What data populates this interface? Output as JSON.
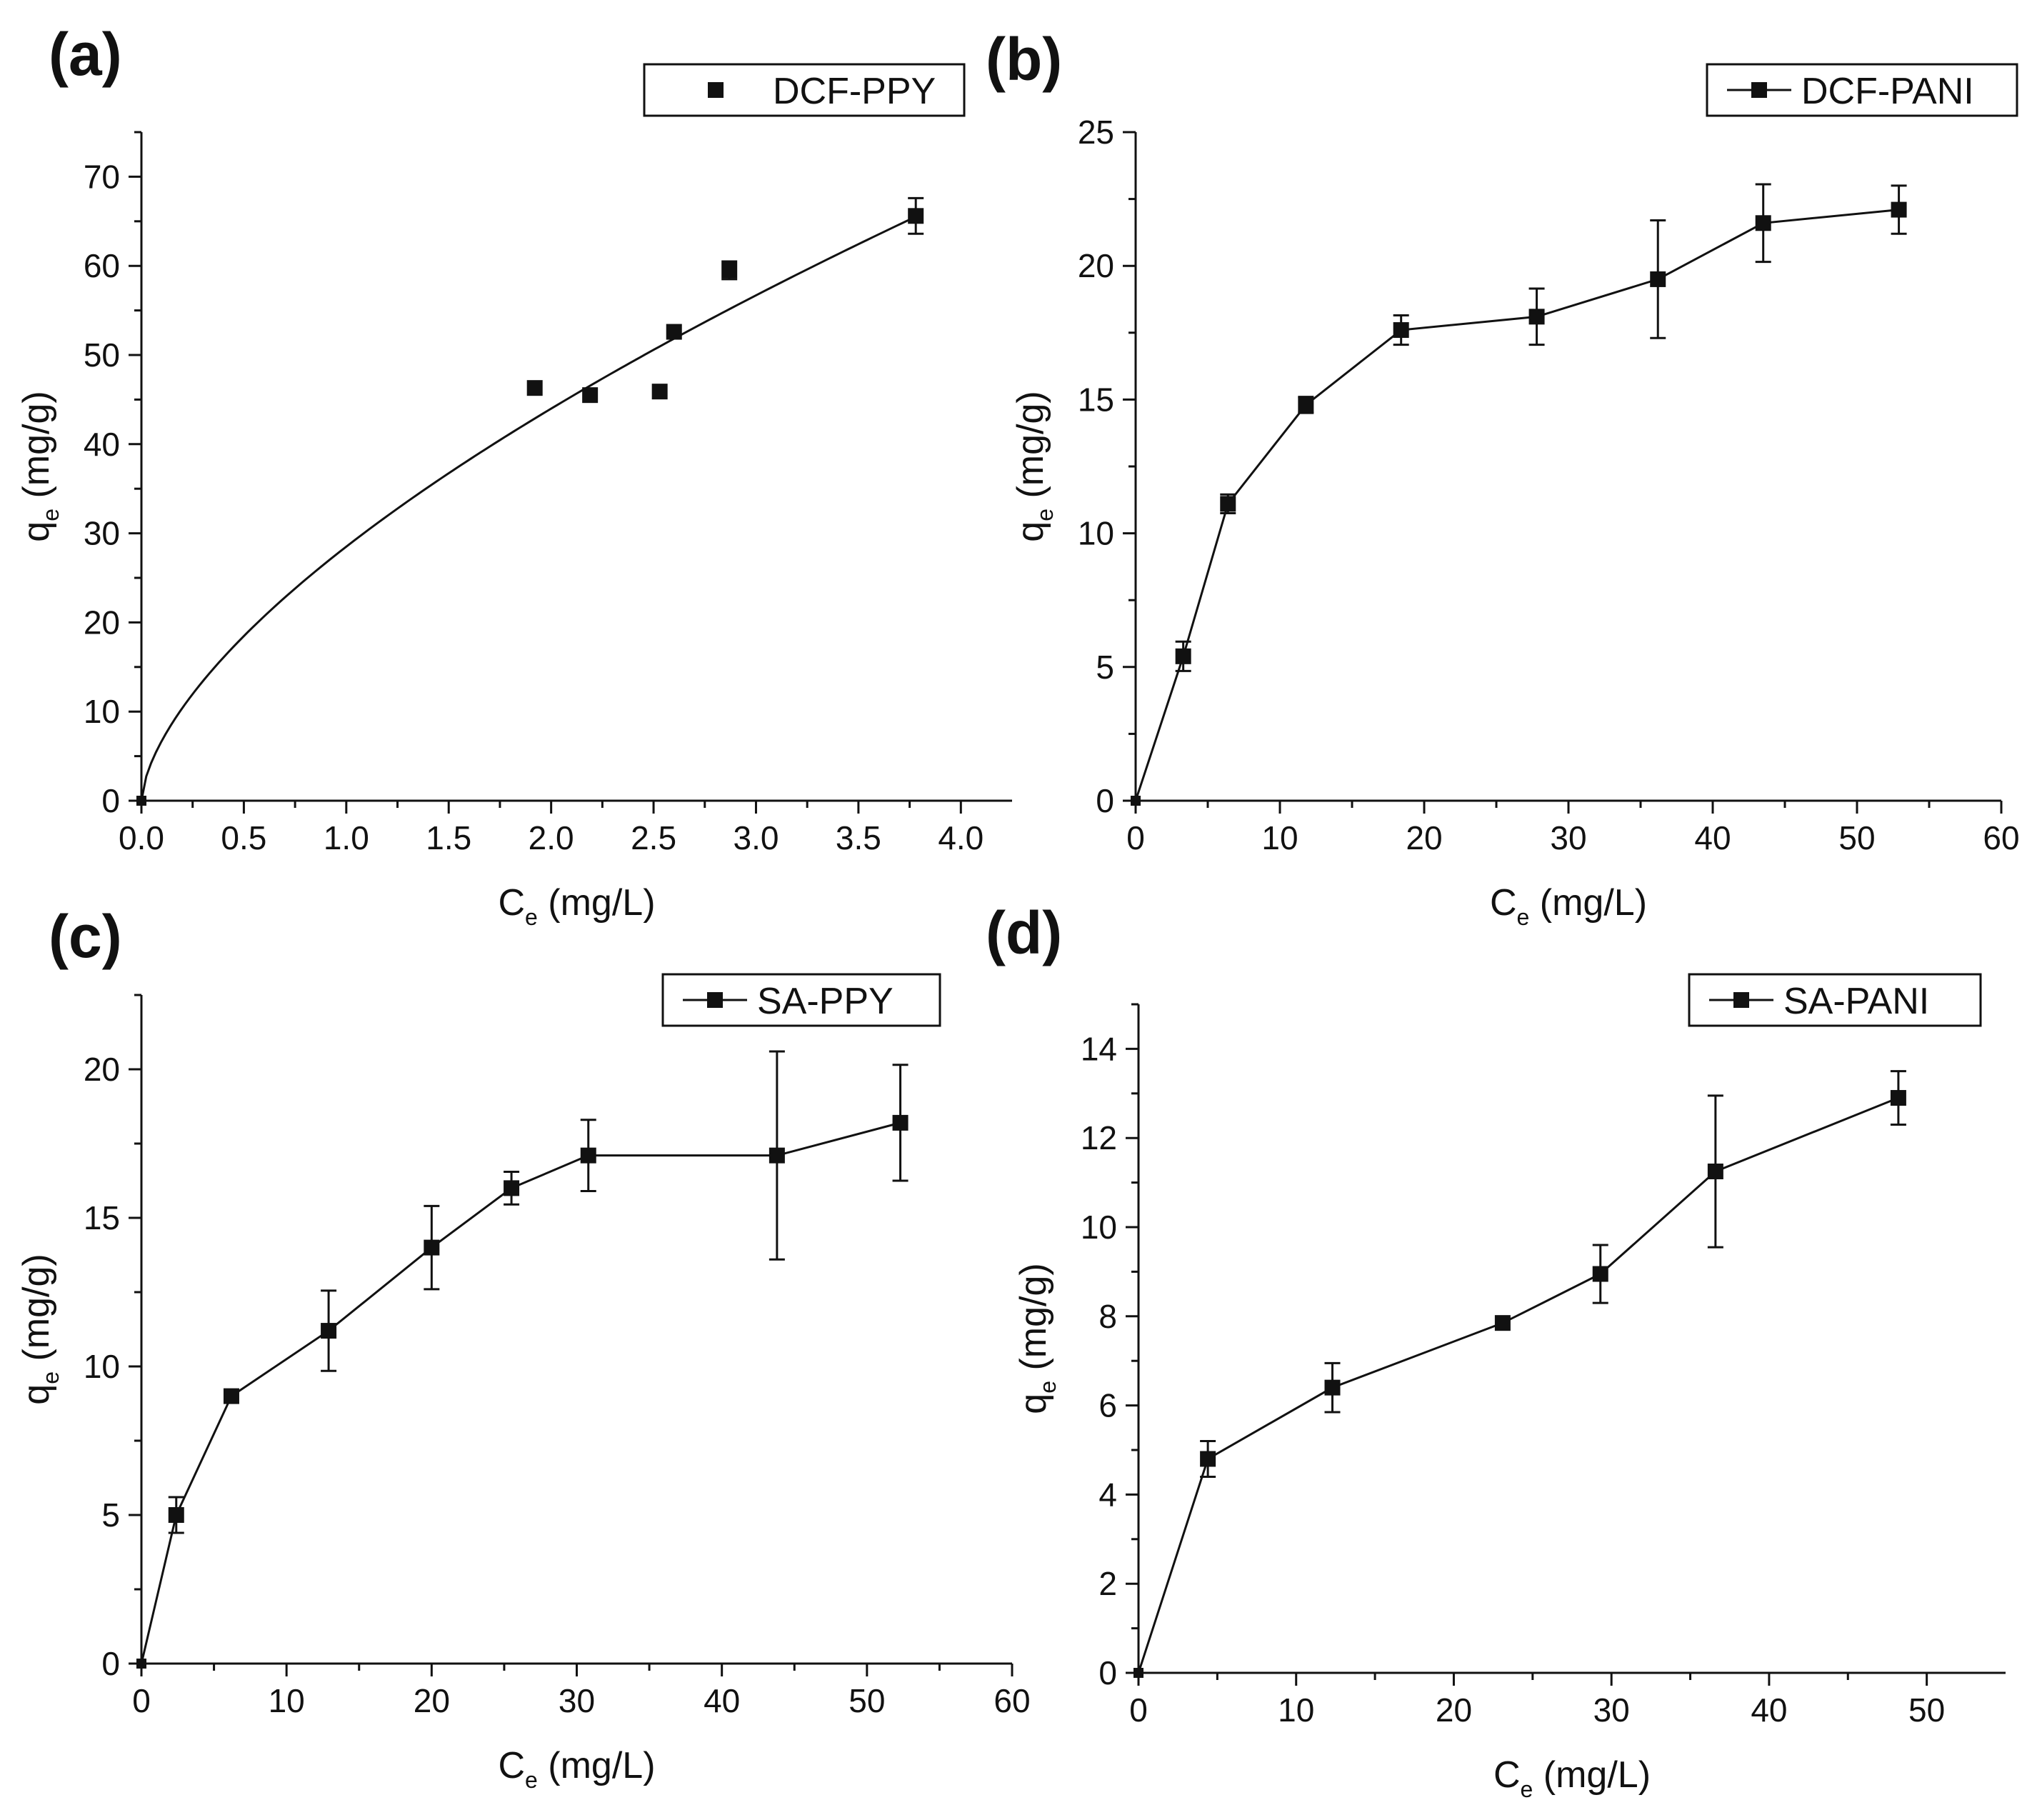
{
  "figure": {
    "colors": {
      "ink": "#111111",
      "background": "#ffffff"
    }
  },
  "chart_data": [
    {
      "panel_label": "(a)",
      "type": "scatter",
      "xlabel": {
        "main": "C",
        "sub": "e",
        "rest": " (mg/L)"
      },
      "ylabel": {
        "main": "q",
        "sub": "e",
        "rest": " (mg/g)"
      },
      "xlim": [
        0,
        4.25
      ],
      "ylim": [
        0,
        75
      ],
      "xticks": [
        0,
        0.5,
        1.0,
        1.5,
        2.0,
        2.5,
        3.0,
        3.5,
        4.0
      ],
      "xtick_labels": [
        "0.0",
        "0.5",
        "1.0",
        "1.5",
        "2.0",
        "2.5",
        "3.0",
        "3.5",
        "4.0"
      ],
      "yticks": [
        0,
        10,
        20,
        30,
        40,
        50,
        60,
        70
      ],
      "ytick_labels": [
        "0",
        "10",
        "20",
        "30",
        "40",
        "50",
        "60",
        "70"
      ],
      "legend": {
        "label": "DCF-PPY",
        "style": "marker",
        "position": "top-right"
      },
      "series": [
        {
          "name": "DCF-PPY",
          "x": [
            0.0,
            1.92,
            2.19,
            2.53,
            2.6,
            2.87,
            3.78
          ],
          "y": [
            0.0,
            46.3,
            45.5,
            45.9,
            52.6,
            59.5,
            65.6
          ],
          "err": [
            0,
            0,
            0,
            0,
            0,
            1.0,
            2.0
          ],
          "connect": false
        }
      ],
      "fit_curve": {
        "model": "power",
        "equation": "q = 28.5 * C^0.626",
        "k": 28.5,
        "n": 0.626,
        "x_range": [
          0,
          3.78
        ]
      }
    },
    {
      "panel_label": "(b)",
      "type": "line",
      "xlabel": {
        "main": "C",
        "sub": "e",
        "rest": " (mg/L)"
      },
      "ylabel": {
        "main": "q",
        "sub": "e",
        "rest": " (mg/g)"
      },
      "xlim": [
        0,
        60
      ],
      "ylim": [
        0,
        25
      ],
      "xticks": [
        0,
        10,
        20,
        30,
        40,
        50,
        60
      ],
      "xtick_labels": [
        "0",
        "10",
        "20",
        "30",
        "40",
        "50",
        "60"
      ],
      "yticks": [
        0,
        5,
        10,
        15,
        20,
        25
      ],
      "ytick_labels": [
        "0",
        "5",
        "10",
        "15",
        "20",
        "25"
      ],
      "legend": {
        "label": "DCF-PANI",
        "style": "line-marker",
        "position": "top-right"
      },
      "series": [
        {
          "name": "DCF-PANI",
          "x": [
            0,
            3.3,
            6.4,
            11.8,
            18.4,
            27.8,
            36.2,
            43.5,
            52.9
          ],
          "y": [
            0,
            5.4,
            11.1,
            14.8,
            17.6,
            18.1,
            19.5,
            21.6,
            22.1
          ],
          "err": [
            0,
            0.55,
            0.35,
            0.3,
            0.55,
            1.05,
            2.2,
            1.45,
            0.9
          ],
          "connect": true
        }
      ]
    },
    {
      "panel_label": "(c)",
      "type": "line",
      "xlabel": {
        "main": "C",
        "sub": "e",
        "rest": " (mg/L)"
      },
      "ylabel": {
        "main": "q",
        "sub": "e",
        "rest": " (mg/g)"
      },
      "xlim": [
        0,
        60
      ],
      "ylim": [
        0,
        22.5
      ],
      "xticks": [
        0,
        10,
        20,
        30,
        40,
        50,
        60
      ],
      "xtick_labels": [
        "0",
        "10",
        "20",
        "30",
        "40",
        "50",
        "60"
      ],
      "yticks": [
        0,
        5,
        10,
        15,
        20
      ],
      "ytick_labels": [
        "0",
        "5",
        "10",
        "15",
        "20"
      ],
      "legend": {
        "label": "SA-PPY",
        "style": "line-marker",
        "position": "top-right"
      },
      "series": [
        {
          "name": "SA-PPY",
          "x": [
            0,
            2.4,
            6.2,
            12.9,
            20.0,
            25.5,
            30.8,
            43.8,
            52.3
          ],
          "y": [
            0,
            5.0,
            9.0,
            11.2,
            14.0,
            16.0,
            17.1,
            17.1,
            18.2
          ],
          "err": [
            0,
            0.6,
            0,
            1.35,
            1.4,
            0.55,
            1.2,
            3.5,
            1.95
          ],
          "connect": true
        }
      ]
    },
    {
      "panel_label": "(d)",
      "type": "line",
      "xlabel": {
        "main": "C",
        "sub": "e",
        "rest": " (mg/L)"
      },
      "ylabel": {
        "main": "q",
        "sub": "e",
        "rest": " (mg/g)"
      },
      "xlim": [
        0,
        55
      ],
      "ylim": [
        0,
        15
      ],
      "xticks": [
        0,
        10,
        20,
        30,
        40,
        50
      ],
      "xtick_labels": [
        "0",
        "10",
        "20",
        "30",
        "40",
        "50"
      ],
      "yticks": [
        0,
        2,
        4,
        6,
        8,
        10,
        12,
        14
      ],
      "ytick_labels": [
        "0",
        "2",
        "4",
        "6",
        "8",
        "10",
        "12",
        "14"
      ],
      "legend": {
        "label": "SA-PANI",
        "style": "line-marker",
        "position": "top-right"
      },
      "series": [
        {
          "name": "SA-PANI",
          "x": [
            0,
            4.4,
            12.3,
            23.1,
            29.3,
            36.6,
            48.2
          ],
          "y": [
            0,
            4.8,
            6.4,
            7.85,
            8.95,
            11.25,
            12.9
          ],
          "err": [
            0,
            0.4,
            0.55,
            0,
            0.65,
            1.7,
            0.6
          ],
          "connect": true
        }
      ]
    }
  ]
}
